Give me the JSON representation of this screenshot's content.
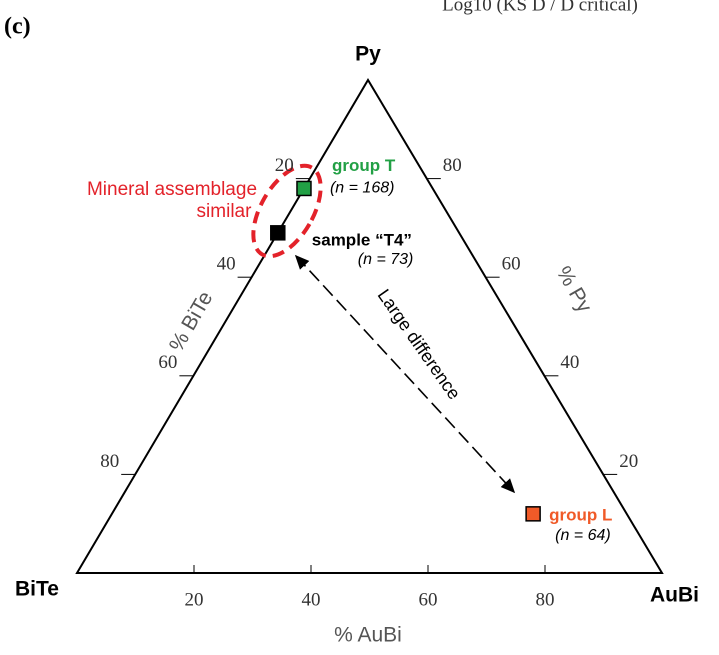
{
  "chart_data": {
    "type": "ternary",
    "panel_label": "(c)",
    "top_note": "Log10 (KS D / D critical)",
    "vertices": {
      "bottom_left": "BiTe",
      "bottom_right": "AuBi",
      "top": "Py"
    },
    "axis_labels": {
      "bottom": "% AuBi",
      "left": "% BiTe",
      "right": "% Py"
    },
    "aubi_ticks": [
      20,
      40,
      60,
      80
    ],
    "bite_ticks": [
      20,
      40,
      60,
      80
    ],
    "py_ticks": [
      20,
      40,
      60,
      80
    ],
    "points": [
      {
        "name": "group T",
        "note": "(n = 168)",
        "color": "#22a045",
        "aubi": 0,
        "bite": 22,
        "py": 78
      },
      {
        "name": "sample “T4”",
        "note": "(n = 73)",
        "color": "#000000",
        "aubi": 0,
        "bite": 31,
        "py": 69
      },
      {
        "name": "group L",
        "note": "(n = 64)",
        "color": "#f05a28",
        "aubi": 72,
        "bite": 16,
        "py": 12
      }
    ],
    "annotations": [
      "Mineral assemblage",
      "similar",
      "Large difference"
    ]
  }
}
